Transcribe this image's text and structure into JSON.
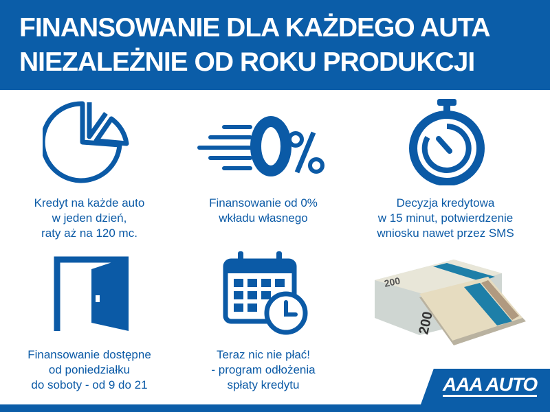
{
  "header": {
    "title_line1": "FINANSOWANIE DLA KAŻDEGO AUTA",
    "title_line2": "NIEZALEŻNIE OD ROKU PRODUKCJI"
  },
  "features": [
    {
      "icon": "pie-chart-icon",
      "lines": [
        "Kredyt na każde auto",
        "w jeden dzień,",
        "raty aż na 120 mc."
      ]
    },
    {
      "icon": "zero-percent-icon",
      "lines": [
        "Finansowanie od 0%",
        "wkładu własnego"
      ]
    },
    {
      "icon": "stopwatch-icon",
      "lines": [
        "Decyzja kredytowa",
        "w 15 minut, potwierdzenie",
        "wniosku nawet przez SMS"
      ]
    },
    {
      "icon": "door-icon",
      "lines": [
        "Finansowanie dostępne",
        "od poniedziałku",
        "do soboty - od 9 do 21"
      ]
    },
    {
      "icon": "calendar-clock-icon",
      "lines": [
        "Teraz nic nie płać!",
        "- program odłożenia",
        "spłaty kredytu"
      ]
    }
  ],
  "money_image": {
    "banknote_value": "200"
  },
  "logo": {
    "text": "AAA AUTO"
  },
  "colors": {
    "brand_blue": "#0b5da8",
    "text_blue": "#0b5aa6"
  }
}
